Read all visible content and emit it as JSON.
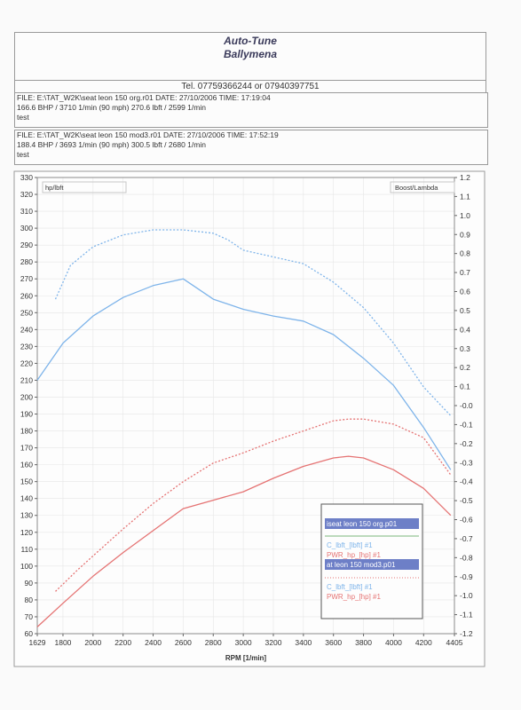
{
  "header": {
    "title": "Auto-Tune",
    "subtitle": "Ballymena",
    "tel": "Tel. 07759366244  or  07940397751"
  },
  "files": [
    {
      "line1": "FILE: E:\\TAT_W2K\\seat leon 150 org.r01  DATE: 27/10/2006  TIME: 17:19:04",
      "line2": "166.6 BHP / 3710 1/min (90 mph)    270.6 lbft / 2599 1/min",
      "line3": "test"
    },
    {
      "line1": "FILE: E:\\TAT_W2K\\seat leon 150 mod3.r01  DATE: 27/10/2006  TIME: 17:52:19",
      "line2": "188.4 BHP / 3693 1/min (90 mph)    300.5 lbft / 2680 1/min",
      "line3": "test"
    }
  ],
  "chart_data": {
    "type": "line",
    "xlabel": "RPM  [1/min]",
    "ylabel_left": "hp/lbft",
    "ylabel_right": "Boost/Lambda",
    "xlim": [
      1629,
      4405
    ],
    "ylim": [
      60,
      330
    ],
    "ylim_right": [
      -1.2,
      1.2
    ],
    "x_ticks": [
      "1629",
      "1800",
      "2000",
      "2200",
      "2400",
      "2600",
      "2800",
      "3000",
      "3200",
      "3400",
      "3600",
      "3800",
      "4000",
      "4200",
      "4405"
    ],
    "y_ticks": [
      "60",
      "70",
      "80",
      "90",
      "100",
      "110",
      "120",
      "130",
      "140",
      "150",
      "160",
      "170",
      "180",
      "190",
      "200",
      "210",
      "220",
      "230",
      "240",
      "250",
      "260",
      "270",
      "280",
      "290",
      "300",
      "310",
      "320",
      "330"
    ],
    "y_ticks_right": [
      "-1.2",
      "-1.1",
      "-1.0",
      "-0.9",
      "-0.8",
      "-0.7",
      "-0.6",
      "-0.5",
      "-0.4",
      "-0.3",
      "-0.2",
      "-0.1",
      "-0.0",
      "0.1",
      "0.2",
      "0.3",
      "0.4",
      "0.5",
      "0.6",
      "0.7",
      "0.8",
      "0.9",
      "1.0",
      "1.1",
      "1.2"
    ],
    "grid": true,
    "legend_position": "bottom-right",
    "legend": {
      "run1": "iseat leon 150 org.p01",
      "run1_torque": "C_lbft_[lbft] #1",
      "run1_power": "PWR_hp_[hp] #1",
      "run2": "at leon 150 mod3.p01",
      "run2_torque": "C_lbft_[lbft] #1",
      "run2_power": "PWR_hp_[hp] #1"
    },
    "series": [
      {
        "name": "C_lbft_[lbft] #1",
        "color": "#7eb4ea",
        "dash": false,
        "x": [
          1629,
          1800,
          2000,
          2200,
          2400,
          2600,
          2700,
          2800,
          3000,
          3200,
          3400,
          3600,
          3800,
          4000,
          4200,
          4380
        ],
        "y": [
          210,
          232,
          248,
          259,
          266,
          270,
          264,
          258,
          252,
          248,
          245,
          237,
          223,
          207,
          182,
          157
        ]
      },
      {
        "name": "PWR_hp_[hp] #1",
        "color": "#e57373",
        "dash": false,
        "x": [
          1629,
          1800,
          2000,
          2200,
          2400,
          2600,
          2800,
          3000,
          3200,
          3400,
          3600,
          3700,
          3800,
          4000,
          4200,
          4380
        ],
        "y": [
          64,
          78,
          94,
          108,
          121,
          134,
          139,
          144,
          152,
          159,
          164,
          165,
          164,
          157,
          146,
          130
        ]
      },
      {
        "name": "C_lbft_[lbft] #1",
        "color": "#7eb4ea",
        "dash": true,
        "x": [
          1750,
          1850,
          2000,
          2200,
          2400,
          2600,
          2800,
          2900,
          3000,
          3200,
          3400,
          3600,
          3800,
          4000,
          4200,
          4380
        ],
        "y": [
          258,
          278,
          289,
          296,
          299,
          299,
          297,
          293,
          287,
          283,
          279,
          268,
          253,
          232,
          206,
          189
        ]
      },
      {
        "name": "PWR_hp_[hp] #1",
        "color": "#e57373",
        "dash": true,
        "x": [
          1750,
          1900,
          2000,
          2200,
          2400,
          2600,
          2800,
          3000,
          3200,
          3400,
          3600,
          3700,
          3800,
          4000,
          4200,
          4380
        ],
        "y": [
          85,
          98,
          106,
          122,
          137,
          150,
          161,
          167,
          174,
          180,
          186,
          187,
          187,
          184,
          176,
          154
        ]
      }
    ]
  }
}
